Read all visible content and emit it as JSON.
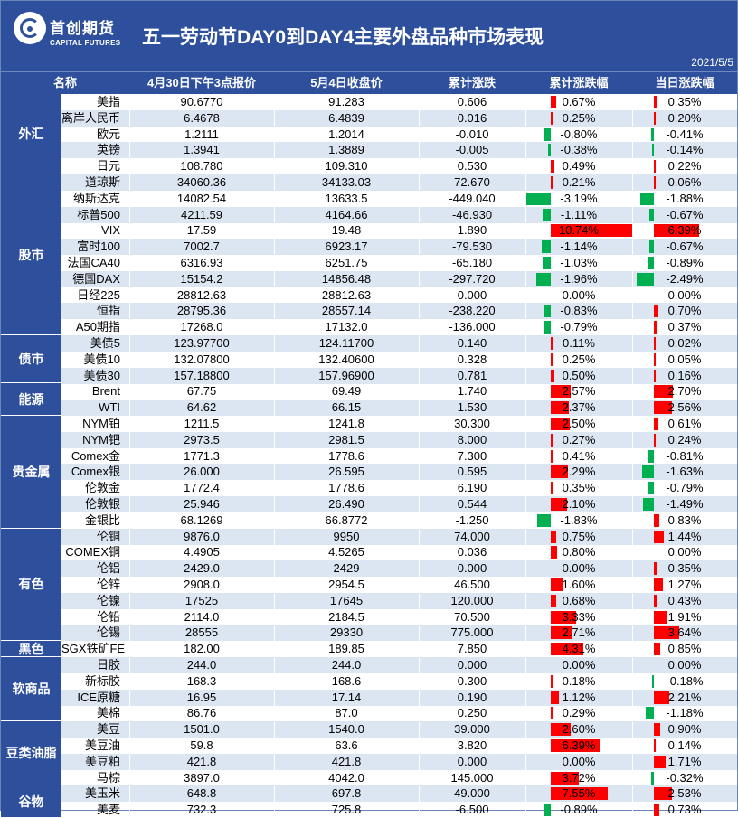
{
  "header": {
    "logo_cn": "首创期货",
    "logo_en": "CAPITAL FUTURES",
    "title": "五一劳动节DAY0到DAY4主要外盘品种市场表现",
    "date": "2021/5/5"
  },
  "columns": {
    "name": "名称",
    "prev_close": "4月30日下午3点报价",
    "close": "5月4日收盘价",
    "cum_change": "累计涨跌",
    "cum_pct": "累计涨跌幅",
    "day_pct": "当日涨跌幅"
  },
  "colors": {
    "header_bg": "#2d4f9c",
    "row_alt": "#dce6f2",
    "up": "#ff0000",
    "down": "#00b050"
  },
  "chart_data": {
    "type": "table",
    "groups": [
      {
        "category": "外汇",
        "rows": [
          {
            "name": "美指",
            "prev": "90.6770",
            "close": "91.283",
            "chg": "0.606",
            "cum": "0.67%",
            "day": "0.35%",
            "cum_v": 0.67,
            "day_v": 0.35
          },
          {
            "name": "离岸人民币",
            "prev": "6.4678",
            "close": "6.4839",
            "chg": "0.016",
            "cum": "0.25%",
            "day": "0.20%",
            "cum_v": 0.25,
            "day_v": 0.2
          },
          {
            "name": "欧元",
            "prev": "1.2111",
            "close": "1.2014",
            "chg": "-0.010",
            "cum": "-0.80%",
            "day": "-0.41%",
            "cum_v": -0.8,
            "day_v": -0.41
          },
          {
            "name": "英镑",
            "prev": "1.3941",
            "close": "1.3889",
            "chg": "-0.005",
            "cum": "-0.38%",
            "day": "-0.14%",
            "cum_v": -0.38,
            "day_v": -0.14
          },
          {
            "name": "日元",
            "prev": "108.780",
            "close": "109.310",
            "chg": "0.530",
            "cum": "0.49%",
            "day": "0.22%",
            "cum_v": 0.49,
            "day_v": 0.22
          }
        ]
      },
      {
        "category": "股市",
        "rows": [
          {
            "name": "道琼斯",
            "prev": "34060.36",
            "close": "34133.03",
            "chg": "72.670",
            "cum": "0.21%",
            "day": "0.06%",
            "cum_v": 0.21,
            "day_v": 0.06
          },
          {
            "name": "纳斯达克",
            "prev": "14082.54",
            "close": "13633.5",
            "chg": "-449.040",
            "cum": "-3.19%",
            "day": "-1.88%",
            "cum_v": -3.19,
            "day_v": -1.88
          },
          {
            "name": "标普500",
            "prev": "4211.59",
            "close": "4164.66",
            "chg": "-46.930",
            "cum": "-1.11%",
            "day": "-0.67%",
            "cum_v": -1.11,
            "day_v": -0.67
          },
          {
            "name": "VIX",
            "prev": "17.59",
            "close": "19.48",
            "chg": "1.890",
            "cum": "10.74%",
            "day": "6.39%",
            "cum_v": 10.74,
            "day_v": 6.39
          },
          {
            "name": "富时100",
            "prev": "7002.7",
            "close": "6923.17",
            "chg": "-79.530",
            "cum": "-1.14%",
            "day": "-0.67%",
            "cum_v": -1.14,
            "day_v": -0.67
          },
          {
            "name": "法国CA40",
            "prev": "6316.93",
            "close": "6251.75",
            "chg": "-65.180",
            "cum": "-1.03%",
            "day": "-0.89%",
            "cum_v": -1.03,
            "day_v": -0.89
          },
          {
            "name": "德国DAX",
            "prev": "15154.2",
            "close": "14856.48",
            "chg": "-297.720",
            "cum": "-1.96%",
            "day": "-2.49%",
            "cum_v": -1.96,
            "day_v": -2.49
          },
          {
            "name": "日经225",
            "prev": "28812.63",
            "close": "28812.63",
            "chg": "0.000",
            "cum": "0.00%",
            "day": "0.00%",
            "cum_v": 0,
            "day_v": 0
          },
          {
            "name": "恒指",
            "prev": "28795.36",
            "close": "28557.14",
            "chg": "-238.220",
            "cum": "-0.83%",
            "day": "0.70%",
            "cum_v": -0.83,
            "day_v": 0.7
          },
          {
            "name": "A50期指",
            "prev": "17268.0",
            "close": "17132.0",
            "chg": "-136.000",
            "cum": "-0.79%",
            "day": "0.37%",
            "cum_v": -0.79,
            "day_v": 0.37
          }
        ]
      },
      {
        "category": "债市",
        "rows": [
          {
            "name": "美债5",
            "prev": "123.97700",
            "close": "124.11700",
            "chg": "0.140",
            "cum": "0.11%",
            "day": "0.02%",
            "cum_v": 0.11,
            "day_v": 0.02
          },
          {
            "name": "美债10",
            "prev": "132.07800",
            "close": "132.40600",
            "chg": "0.328",
            "cum": "0.25%",
            "day": "0.05%",
            "cum_v": 0.25,
            "day_v": 0.05
          },
          {
            "name": "美债30",
            "prev": "157.18800",
            "close": "157.96900",
            "chg": "0.781",
            "cum": "0.50%",
            "day": "0.16%",
            "cum_v": 0.5,
            "day_v": 0.16
          }
        ]
      },
      {
        "category": "能源",
        "rows": [
          {
            "name": "Brent",
            "prev": "67.75",
            "close": "69.49",
            "chg": "1.740",
            "cum": "2.57%",
            "day": "2.70%",
            "cum_v": 2.57,
            "day_v": 2.7
          },
          {
            "name": "WTI",
            "prev": "64.62",
            "close": "66.15",
            "chg": "1.530",
            "cum": "2.37%",
            "day": "2.56%",
            "cum_v": 2.37,
            "day_v": 2.56
          }
        ]
      },
      {
        "category": "贵金属",
        "rows": [
          {
            "name": "NYM铂",
            "prev": "1211.5",
            "close": "1241.8",
            "chg": "30.300",
            "cum": "2.50%",
            "day": "0.61%",
            "cum_v": 2.5,
            "day_v": 0.61
          },
          {
            "name": "NYM钯",
            "prev": "2973.5",
            "close": "2981.5",
            "chg": "8.000",
            "cum": "0.27%",
            "day": "0.24%",
            "cum_v": 0.27,
            "day_v": 0.24
          },
          {
            "name": "Comex金",
            "prev": "1771.3",
            "close": "1778.6",
            "chg": "7.300",
            "cum": "0.41%",
            "day": "-0.81%",
            "cum_v": 0.41,
            "day_v": -0.81
          },
          {
            "name": "Comex银",
            "prev": "26.000",
            "close": "26.595",
            "chg": "0.595",
            "cum": "2.29%",
            "day": "-1.63%",
            "cum_v": 2.29,
            "day_v": -1.63
          },
          {
            "name": "伦敦金",
            "prev": "1772.4",
            "close": "1778.6",
            "chg": "6.190",
            "cum": "0.35%",
            "day": "-0.79%",
            "cum_v": 0.35,
            "day_v": -0.79
          },
          {
            "name": "伦敦银",
            "prev": "25.946",
            "close": "26.490",
            "chg": "0.544",
            "cum": "2.10%",
            "day": "-1.49%",
            "cum_v": 2.1,
            "day_v": -1.49
          },
          {
            "name": "金银比",
            "prev": "68.1269",
            "close": "66.8772",
            "chg": "-1.250",
            "cum": "-1.83%",
            "day": "0.83%",
            "cum_v": -1.83,
            "day_v": 0.83
          }
        ]
      },
      {
        "category": "有色",
        "rows": [
          {
            "name": "伦铜",
            "prev": "9876.0",
            "close": "9950",
            "chg": "74.000",
            "cum": "0.75%",
            "day": "1.44%",
            "cum_v": 0.75,
            "day_v": 1.44
          },
          {
            "name": "COMEX铜",
            "prev": "4.4905",
            "close": "4.5265",
            "chg": "0.036",
            "cum": "0.80%",
            "day": "0.00%",
            "cum_v": 0.8,
            "day_v": 0
          },
          {
            "name": "伦铝",
            "prev": "2429.0",
            "close": "2429",
            "chg": "0.000",
            "cum": "0.00%",
            "day": "0.35%",
            "cum_v": 0,
            "day_v": 0.35
          },
          {
            "name": "伦锌",
            "prev": "2908.0",
            "close": "2954.5",
            "chg": "46.500",
            "cum": "1.60%",
            "day": "1.27%",
            "cum_v": 1.6,
            "day_v": 1.27
          },
          {
            "name": "伦镍",
            "prev": "17525",
            "close": "17645",
            "chg": "120.000",
            "cum": "0.68%",
            "day": "0.43%",
            "cum_v": 0.68,
            "day_v": 0.43
          },
          {
            "name": "伦铅",
            "prev": "2114.0",
            "close": "2184.5",
            "chg": "70.500",
            "cum": "3.33%",
            "day": "1.91%",
            "cum_v": 3.33,
            "day_v": 1.91
          },
          {
            "name": "伦锡",
            "prev": "28555",
            "close": "29330",
            "chg": "775.000",
            "cum": "2.71%",
            "day": "3.64%",
            "cum_v": 2.71,
            "day_v": 3.64
          }
        ]
      },
      {
        "category": "黑色",
        "rows": [
          {
            "name": "SGX铁矿FE",
            "prev": "182.00",
            "close": "189.85",
            "chg": "7.850",
            "cum": "4.31%",
            "day": "0.85%",
            "cum_v": 4.31,
            "day_v": 0.85
          }
        ]
      },
      {
        "category": "软商品",
        "rows": [
          {
            "name": "日胶",
            "prev": "244.0",
            "close": "244.0",
            "chg": "0.000",
            "cum": "0.00%",
            "day": "0.00%",
            "cum_v": 0,
            "day_v": 0
          },
          {
            "name": "新标胶",
            "prev": "168.3",
            "close": "168.6",
            "chg": "0.300",
            "cum": "0.18%",
            "day": "-0.18%",
            "cum_v": 0.18,
            "day_v": -0.18
          },
          {
            "name": "ICE原糖",
            "prev": "16.95",
            "close": "17.14",
            "chg": "0.190",
            "cum": "1.12%",
            "day": "2.21%",
            "cum_v": 1.12,
            "day_v": 2.21
          },
          {
            "name": "美棉",
            "prev": "86.76",
            "close": "87.0",
            "chg": "0.250",
            "cum": "0.29%",
            "day": "-1.18%",
            "cum_v": 0.29,
            "day_v": -1.18
          }
        ]
      },
      {
        "category": "豆类油脂",
        "rows": [
          {
            "name": "美豆",
            "prev": "1501.0",
            "close": "1540.0",
            "chg": "39.000",
            "cum": "2.60%",
            "day": "0.90%",
            "cum_v": 2.6,
            "day_v": 0.9
          },
          {
            "name": "美豆油",
            "prev": "59.8",
            "close": "63.6",
            "chg": "3.820",
            "cum": "6.39%",
            "day": "0.14%",
            "cum_v": 6.39,
            "day_v": 0.14
          },
          {
            "name": "美豆粕",
            "prev": "421.8",
            "close": "421.8",
            "chg": "0.000",
            "cum": "0.00%",
            "day": "1.71%",
            "cum_v": 0,
            "day_v": 1.71
          },
          {
            "name": "马棕",
            "prev": "3897.0",
            "close": "4042.0",
            "chg": "145.000",
            "cum": "3.72%",
            "day": "-0.32%",
            "cum_v": 3.72,
            "day_v": -0.32
          }
        ]
      },
      {
        "category": "谷物",
        "rows": [
          {
            "name": "美玉米",
            "prev": "648.8",
            "close": "697.8",
            "chg": "49.000",
            "cum": "7.55%",
            "day": "2.53%",
            "cum_v": 7.55,
            "day_v": 2.53
          },
          {
            "name": "美麦",
            "prev": "732.3",
            "close": "725.8",
            "chg": "-6.500",
            "cum": "-0.89%",
            "day": "0.73%",
            "cum_v": -0.89,
            "day_v": 0.73
          }
        ]
      }
    ]
  }
}
